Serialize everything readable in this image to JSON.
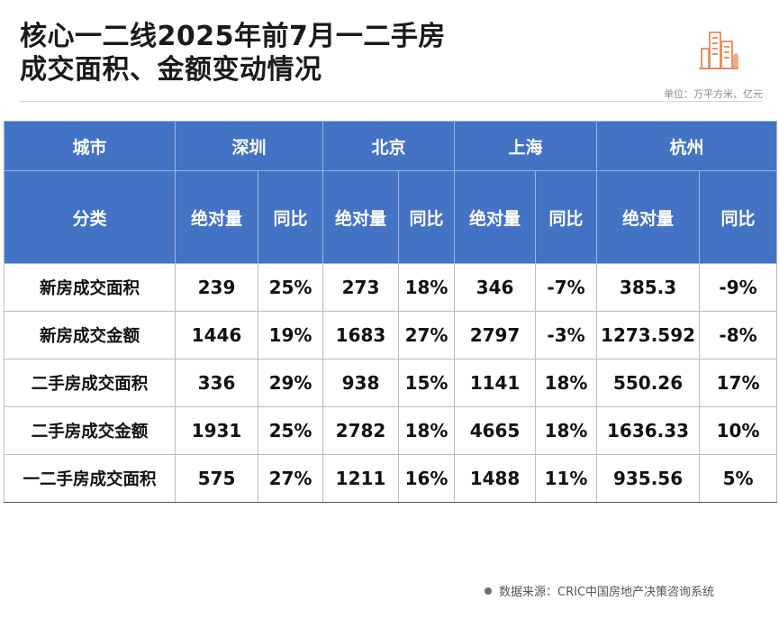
{
  "title": {
    "line1": "核心一二线2025年前7月一二手房",
    "line2": "成交面积、金额变动情况"
  },
  "unit": "单位：万平方米、亿元",
  "logo_icon": "buildings-icon",
  "table": {
    "header_city_label": "城市",
    "header_category_label": "分类",
    "cities": [
      "深圳",
      "北京",
      "上海",
      "杭州"
    ],
    "abs_label": "绝对量",
    "yoy_label": "同比",
    "rows": [
      {
        "label": "新房成交面积",
        "cells": [
          [
            "239",
            "25%"
          ],
          [
            "273",
            "18%"
          ],
          [
            "346",
            "-7%"
          ],
          [
            "385.3",
            "-9%"
          ]
        ]
      },
      {
        "label": "新房成交金额",
        "cells": [
          [
            "1446",
            "19%"
          ],
          [
            "1683",
            "27%"
          ],
          [
            "2797",
            "-3%"
          ],
          [
            "1273.592",
            "-8%"
          ]
        ]
      },
      {
        "label": "二手房成交面积",
        "cells": [
          [
            "336",
            "29%"
          ],
          [
            "938",
            "15%"
          ],
          [
            "1141",
            "18%"
          ],
          [
            "550.26",
            "17%"
          ]
        ]
      },
      {
        "label": "二手房成交金额",
        "cells": [
          [
            "1931",
            "25%"
          ],
          [
            "2782",
            "18%"
          ],
          [
            "4665",
            "18%"
          ],
          [
            "1636.33",
            "10%"
          ]
        ]
      },
      {
        "label": "一二手房成交面积",
        "cells": [
          [
            "575",
            "27%"
          ],
          [
            "1211",
            "16%"
          ],
          [
            "1488",
            "11%"
          ],
          [
            "935.56",
            "5%"
          ]
        ]
      }
    ]
  },
  "colors": {
    "header_bg": "#4472c4",
    "shenzhen_yoy": "#b22222",
    "negative": "#1f9d55",
    "default": "#111111"
  },
  "footer": "数据来源：CRIC中国房地产决策咨询系统"
}
